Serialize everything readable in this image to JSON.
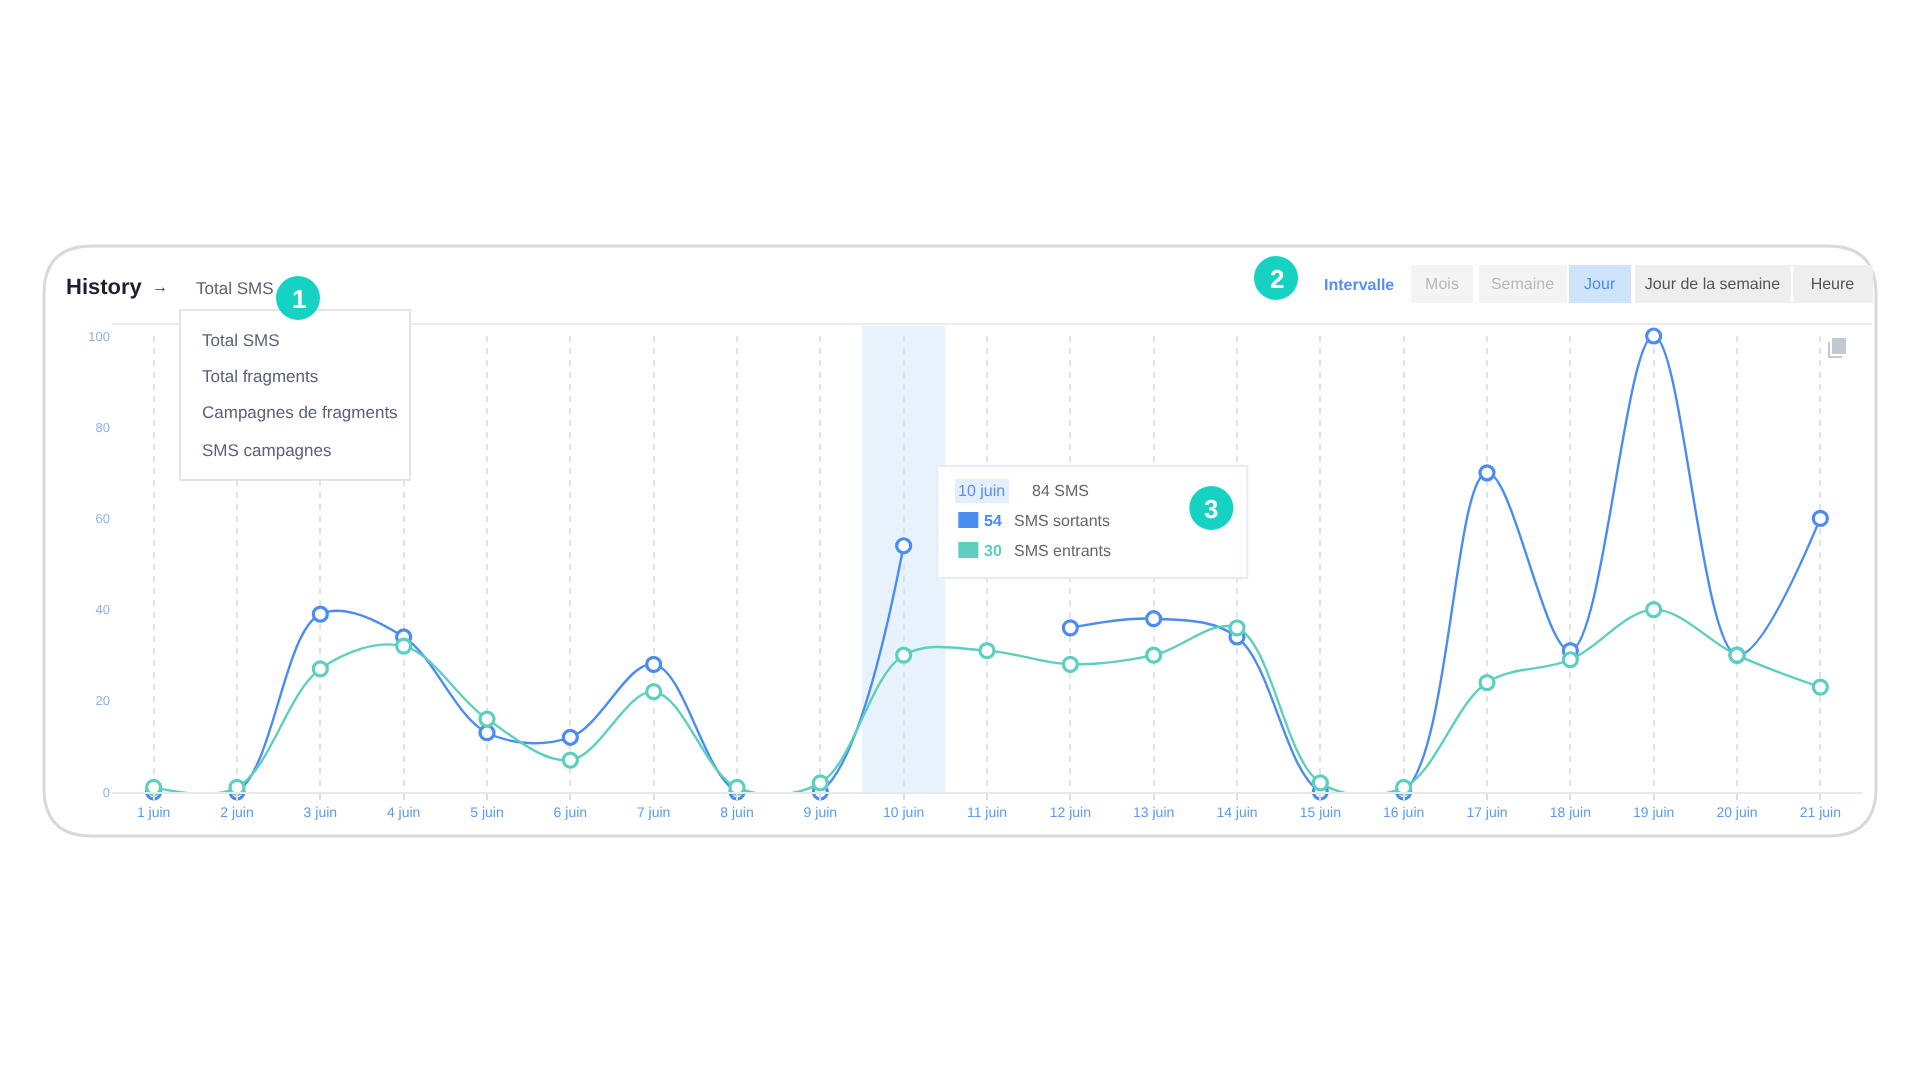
{
  "chart_data": {
    "type": "line",
    "title": "History",
    "subtitle": "Total SMS",
    "categories": [
      "1 juin",
      "2 juin",
      "3 juin",
      "4 juin",
      "5 juin",
      "6 juin",
      "7 juin",
      "8 juin",
      "9 juin",
      "10 juin",
      "11 juin",
      "12 juin",
      "13 juin",
      "14 juin",
      "15 juin",
      "16 juin",
      "17 juin",
      "18 juin",
      "19 juin",
      "20 juin",
      "21 juin"
    ],
    "series": [
      {
        "name": "SMS sortants",
        "color": "#4a8cf0",
        "values": [
          0,
          0,
          39,
          34,
          13,
          12,
          28,
          0,
          0,
          54,
          null,
          36,
          38,
          34,
          0,
          0,
          70,
          31,
          100,
          30,
          60
        ]
      },
      {
        "name": "SMS entrants",
        "color": "#5ccfbf",
        "values": [
          1,
          1,
          27,
          32,
          16,
          7,
          22,
          1,
          2,
          30,
          31,
          28,
          30,
          36,
          2,
          1,
          24,
          29,
          40,
          30,
          23
        ]
      }
    ],
    "ylim": [
      0,
      100
    ],
    "yticks": [
      0,
      20,
      40,
      60,
      80,
      100
    ],
    "grid": "x",
    "marker": "circle",
    "line_style": "solid",
    "legend": "top",
    "bands": [
      {
        "axis": "x",
        "from": "10 juin",
        "to": "10 juin",
        "color": "#e8f2fd"
      }
    ],
    "annotations": [
      "→",
      "Total SMS",
      "Total fragments",
      "Campagnes de fragments",
      "SMS campagnes",
      "Intervalle",
      "Mois",
      "Semaine",
      "Jour",
      "Jour de la semaine",
      "Heure",
      "1",
      "2",
      "3",
      "84 SMS",
      "54",
      "30"
    ]
  }
}
